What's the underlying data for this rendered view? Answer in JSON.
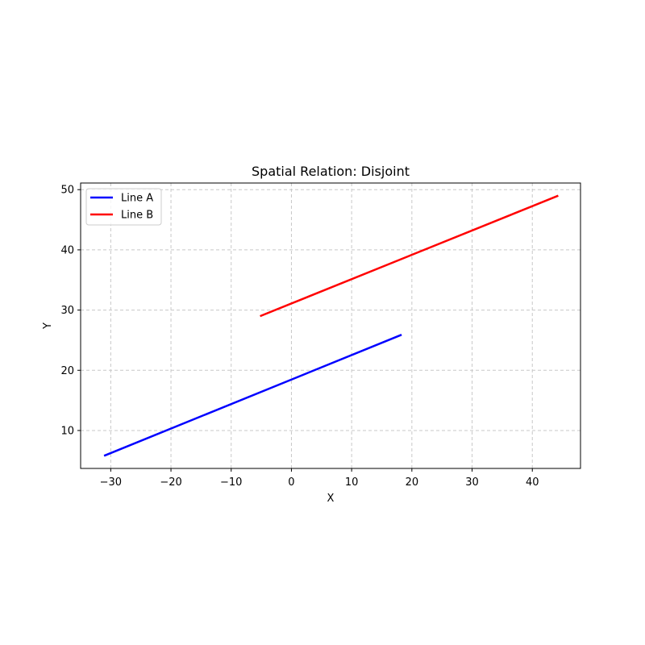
{
  "chart_data": {
    "type": "line",
    "title": "Spatial Relation: Disjoint",
    "xlabel": "X",
    "ylabel": "Y",
    "xlim": [
      -35,
      48
    ],
    "ylim": [
      3.7,
      51.1
    ],
    "xticks": [
      -30,
      -20,
      -10,
      0,
      10,
      20,
      30,
      40
    ],
    "yticks": [
      10,
      20,
      30,
      40,
      50
    ],
    "grid": true,
    "legend_position": "top-left",
    "series": [
      {
        "name": "Line A",
        "color": "#0000ff",
        "x": [
          -31.1,
          18.3
        ],
        "y": [
          5.8,
          25.9
        ]
      },
      {
        "name": "Line B",
        "color": "#ff0000",
        "x": [
          -5.2,
          44.3
        ],
        "y": [
          29.0,
          49.0
        ]
      }
    ]
  }
}
